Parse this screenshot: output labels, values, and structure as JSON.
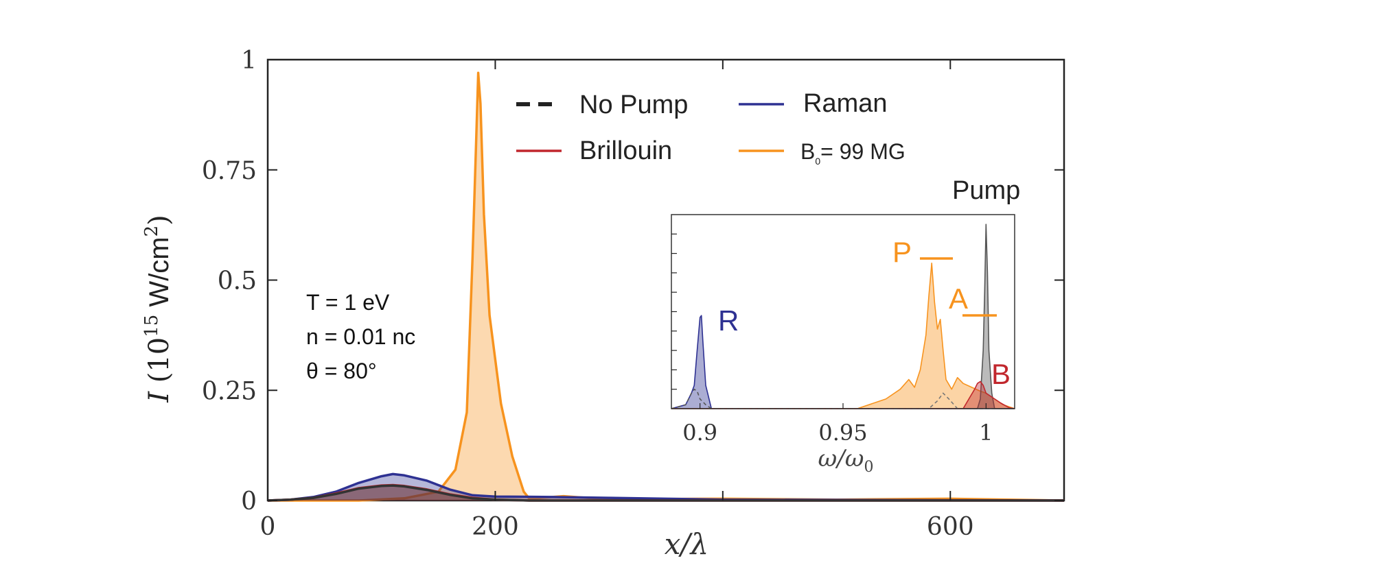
{
  "chart_data": [
    {
      "id": "main",
      "type": "area",
      "xlabel": "x/λ",
      "ylabel": "I (10^15 W/cm^2)",
      "xlim": [
        0,
        700
      ],
      "ylim": [
        0,
        1
      ],
      "x_ticks": [
        0,
        200,
        600
      ],
      "x_tick_labels": [
        "0",
        "200",
        "600"
      ],
      "y_ticks": [
        0,
        0.25,
        0.5,
        0.75,
        1
      ],
      "y_tick_labels": [
        "0",
        "0.25",
        "0.5",
        "0.75",
        "1"
      ],
      "legend_position": "top-center",
      "legend": [
        {
          "label": "No Pump",
          "color": "#222222",
          "style": "dashed"
        },
        {
          "label": "Raman",
          "color": "#2e3192",
          "style": "solid"
        },
        {
          "label": "Brillouin",
          "color": "#c1272d",
          "style": "solid"
        },
        {
          "label": "B",
          "label_sub": "0",
          "label_rest": "= 99 MG",
          "color": "#f7931e",
          "style": "solid"
        }
      ],
      "annotations": [
        "T = 1 eV",
        "n = 0.01 nc",
        "θ = 80°"
      ],
      "series": [
        {
          "name": "B0 = 99 MG",
          "color": "#f7931e",
          "x": [
            0,
            80,
            120,
            150,
            165,
            175,
            180,
            183,
            185,
            187,
            190,
            195,
            205,
            215,
            225,
            230,
            260,
            275,
            300,
            400,
            500,
            600,
            700
          ],
          "y": [
            0,
            0.0,
            0.005,
            0.02,
            0.07,
            0.2,
            0.55,
            0.8,
            0.97,
            0.9,
            0.65,
            0.42,
            0.22,
            0.1,
            0.02,
            0.004,
            0.01,
            0.007,
            0.003,
            0.004,
            0.002,
            0.004,
            0.0
          ]
        },
        {
          "name": "Raman",
          "color": "#2e3192",
          "x": [
            0,
            20,
            40,
            60,
            80,
            100,
            110,
            120,
            140,
            160,
            180,
            200,
            250,
            300,
            350,
            400,
            700
          ],
          "y": [
            0,
            0.002,
            0.008,
            0.02,
            0.04,
            0.055,
            0.06,
            0.057,
            0.045,
            0.025,
            0.012,
            0.009,
            0.008,
            0.006,
            0.004,
            0.002,
            0.0
          ]
        },
        {
          "name": "Brillouin",
          "color": "#c1272d",
          "x": [
            0,
            20,
            40,
            60,
            80,
            100,
            110,
            120,
            140,
            160,
            180,
            200,
            230,
            700
          ],
          "y": [
            0,
            0.002,
            0.006,
            0.016,
            0.028,
            0.034,
            0.035,
            0.033,
            0.025,
            0.014,
            0.006,
            0.002,
            0.0,
            0.0
          ]
        },
        {
          "name": "No Pump",
          "color": "#333333",
          "x": [
            0,
            20,
            40,
            60,
            80,
            100,
            110,
            120,
            140,
            160,
            180,
            200,
            230,
            700
          ],
          "y": [
            0,
            0.002,
            0.006,
            0.015,
            0.027,
            0.033,
            0.034,
            0.032,
            0.024,
            0.013,
            0.005,
            0.002,
            0.0,
            0.0
          ]
        }
      ]
    },
    {
      "id": "inset",
      "type": "area",
      "title": "Pump",
      "xlabel": "ω/ω0",
      "xlim": [
        0.89,
        1.01
      ],
      "ylim": [
        0,
        1
      ],
      "x_ticks": [
        0.9,
        0.95,
        1.0
      ],
      "x_tick_labels": [
        "0.9",
        "0.95",
        "1"
      ],
      "peak_labels": [
        {
          "text": "R",
          "color": "#2e3192"
        },
        {
          "text": "P",
          "color": "#f7931e"
        },
        {
          "text": "A",
          "color": "#f7931e"
        },
        {
          "text": "B",
          "color": "#c1272d"
        }
      ],
      "series": [
        {
          "name": "Raman",
          "color": "#2e3192",
          "x": [
            0.89,
            0.895,
            0.897,
            0.898,
            0.899,
            0.9,
            0.9005,
            0.901,
            0.902,
            0.904,
            1.01
          ],
          "y": [
            0,
            0.02,
            0.08,
            0.12,
            0.3,
            0.47,
            0.48,
            0.35,
            0.12,
            0.0,
            0.0
          ]
        },
        {
          "name": "No Pump (R)",
          "color": "#555555",
          "style": "dashed",
          "x": [
            0.89,
            0.895,
            0.897,
            0.898,
            0.899,
            0.9,
            0.902,
            0.904,
            1.01
          ],
          "y": [
            0,
            0.02,
            0.08,
            0.1,
            0.09,
            0.05,
            0.02,
            0.0,
            0.0
          ]
        },
        {
          "name": "B0 = 99 MG",
          "color": "#f7931e",
          "x": [
            0.89,
            0.955,
            0.965,
            0.97,
            0.973,
            0.975,
            0.977,
            0.979,
            0.98,
            0.981,
            0.982,
            0.983,
            0.984,
            0.985,
            0.986,
            0.988,
            0.99,
            0.992,
            0.995,
            0.998,
            1.0,
            1.003,
            1.006,
            1.01
          ],
          "y": [
            0,
            0.0,
            0.05,
            0.1,
            0.15,
            0.11,
            0.2,
            0.38,
            0.58,
            0.75,
            0.55,
            0.41,
            0.46,
            0.3,
            0.15,
            0.1,
            0.16,
            0.13,
            0.11,
            0.09,
            0.08,
            0.05,
            0.02,
            0.0
          ]
        },
        {
          "name": "Pump (no B)",
          "color": "#555555",
          "x": [
            0.89,
            0.997,
            0.998,
            0.999,
            0.9995,
            1.0,
            1.0005,
            1.001,
            1.002,
            1.003,
            1.01
          ],
          "y": [
            0,
            0.0,
            0.05,
            0.3,
            0.6,
            0.95,
            0.7,
            0.3,
            0.08,
            0.0,
            0.0
          ]
        },
        {
          "name": "Brillouin",
          "color": "#c1272d",
          "x": [
            0.89,
            0.992,
            0.994,
            0.996,
            0.997,
            0.998,
            0.999,
            1.0,
            1.002,
            1.005,
            1.008,
            1.01
          ],
          "y": [
            0,
            0.0,
            0.05,
            0.1,
            0.13,
            0.14,
            0.12,
            0.08,
            0.06,
            0.03,
            0.005,
            0.0
          ]
        },
        {
          "name": "No Pump (P)",
          "color": "#777777",
          "style": "dashed",
          "x": [
            0.89,
            0.98,
            0.983,
            0.985,
            0.987,
            0.99,
            1.01
          ],
          "y": [
            0,
            0.0,
            0.04,
            0.08,
            0.05,
            0.0,
            0.0
          ]
        }
      ]
    }
  ]
}
